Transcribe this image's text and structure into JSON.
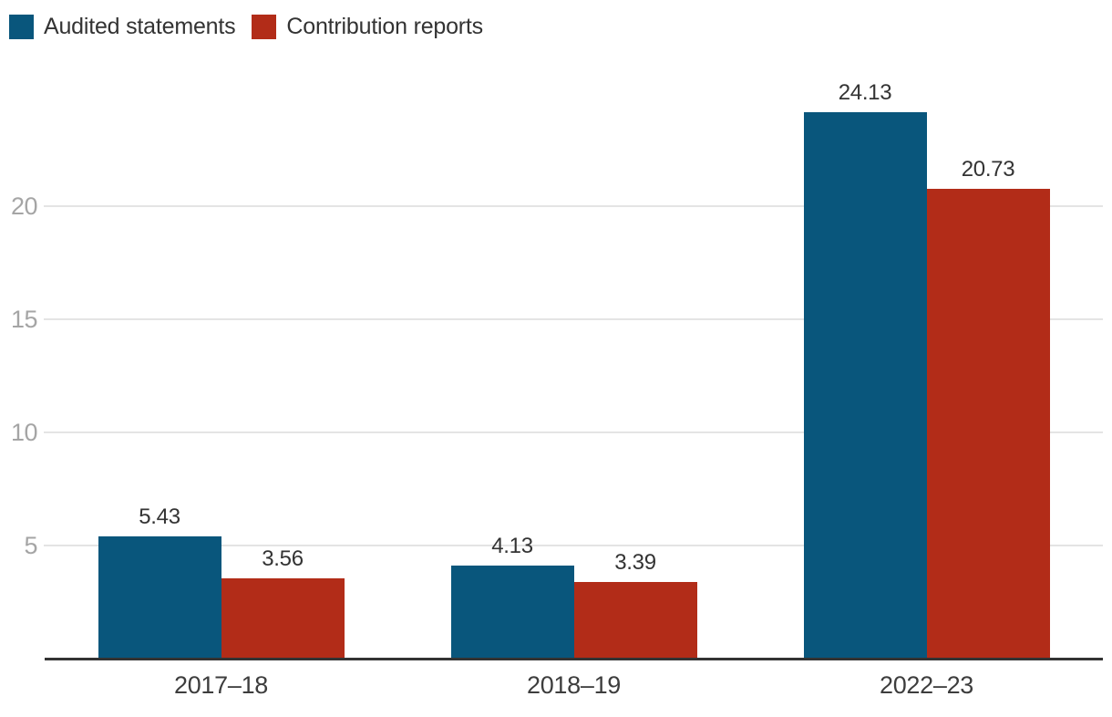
{
  "chart_data": {
    "type": "bar",
    "categories": [
      "2017–18",
      "2018–19",
      "2022–23"
    ],
    "series": [
      {
        "name": "Audited statements",
        "color": "#09567C",
        "values": [
          5.43,
          4.13,
          24.13
        ]
      },
      {
        "name": "Contribution reports",
        "color": "#B22C18",
        "values": [
          3.56,
          3.39,
          20.73
        ]
      }
    ],
    "value_labels": [
      "5.43",
      "3.56",
      "4.13",
      "3.39",
      "24.13",
      "20.73"
    ],
    "y_ticks": [
      5,
      10,
      15,
      20
    ],
    "ylim": [
      0,
      25
    ],
    "title": "",
    "xlabel": "",
    "ylabel": "",
    "grid": true,
    "legend_position": "top-left",
    "colors": {
      "background": "#ffffff",
      "gridline": "#e4e4e4",
      "axis_line": "#333333",
      "y_tick_text": "#a5a5a5",
      "x_tick_text": "#3d3d3d",
      "value_label_text": "#333333"
    }
  }
}
